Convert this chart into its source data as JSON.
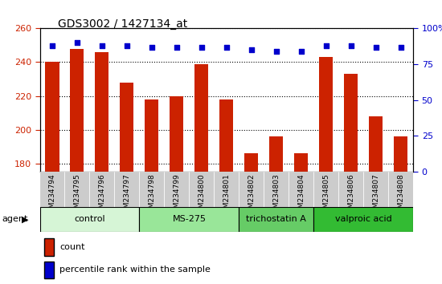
{
  "title": "GDS3002 / 1427134_at",
  "samples": [
    "GSM234794",
    "GSM234795",
    "GSM234796",
    "GSM234797",
    "GSM234798",
    "GSM234799",
    "GSM234800",
    "GSM234801",
    "GSM234802",
    "GSM234803",
    "GSM234804",
    "GSM234805",
    "GSM234806",
    "GSM234807",
    "GSM234808"
  ],
  "counts": [
    240,
    248,
    246,
    228,
    218,
    220,
    239,
    218,
    186,
    196,
    186,
    243,
    233,
    208,
    196
  ],
  "percentiles": [
    88,
    90,
    88,
    88,
    87,
    87,
    87,
    87,
    85,
    84,
    84,
    88,
    88,
    87,
    87
  ],
  "groups": [
    {
      "label": "control",
      "start": 0,
      "end": 4,
      "color": "#d6f5d6"
    },
    {
      "label": "MS-275",
      "start": 4,
      "end": 8,
      "color": "#99e699"
    },
    {
      "label": "trichostatin A",
      "start": 8,
      "end": 11,
      "color": "#66cc66"
    },
    {
      "label": "valproic acid",
      "start": 11,
      "end": 15,
      "color": "#33bb33"
    }
  ],
  "ylim_left": [
    175,
    260
  ],
  "ylim_right": [
    0,
    100
  ],
  "yticks_left": [
    180,
    200,
    220,
    240,
    260
  ],
  "yticks_right": [
    0,
    25,
    50,
    75,
    100
  ],
  "bar_color": "#cc2200",
  "dot_color": "#0000cc",
  "bar_bottom": 175,
  "bar_width": 0.55,
  "sample_bg": "#cccccc",
  "plot_bg": "#ffffff"
}
